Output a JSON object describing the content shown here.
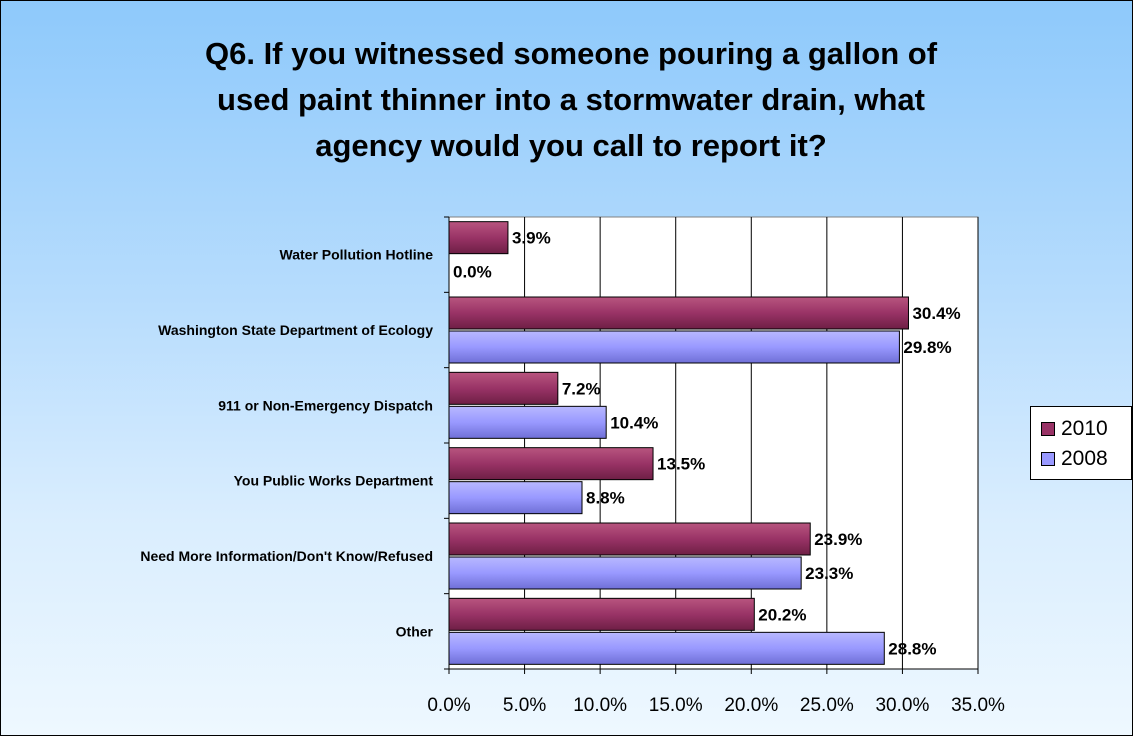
{
  "chart_data": {
    "type": "bar",
    "orientation": "horizontal",
    "title_lines": [
      "Q6. If you witnessed someone pouring a gallon of",
      "used paint thinner into a stormwater drain, what",
      "agency would you call to report it?"
    ],
    "categories": [
      "Water Pollution Hotline",
      "Washington State Department of Ecology",
      "911 or Non-Emergency Dispatch",
      "You Public Works Department",
      "Need More Information/Don't Know/Refused",
      "Other"
    ],
    "series": [
      {
        "name": "2010",
        "color": "#993366",
        "values": [
          3.9,
          30.4,
          7.2,
          13.5,
          23.9,
          20.2
        ],
        "labels": [
          "3.9%",
          "30.4%",
          "7.2%",
          "13.5%",
          "23.9%",
          "20.2%"
        ]
      },
      {
        "name": "2008",
        "color": "#9999ff",
        "values": [
          0.0,
          29.8,
          10.4,
          8.8,
          23.3,
          28.8
        ],
        "labels": [
          "0.0%",
          "29.8%",
          "10.4%",
          "8.8%",
          "23.3%",
          "28.8%"
        ]
      }
    ],
    "xlim": [
      0,
      35
    ],
    "xticks": [
      0,
      5,
      10,
      15,
      20,
      25,
      30,
      35
    ],
    "xtick_labels": [
      "0.0%",
      "5.0%",
      "10.0%",
      "15.0%",
      "20.0%",
      "25.0%",
      "30.0%",
      "35.0%"
    ],
    "grid": "vertical",
    "legend_position": "right"
  }
}
